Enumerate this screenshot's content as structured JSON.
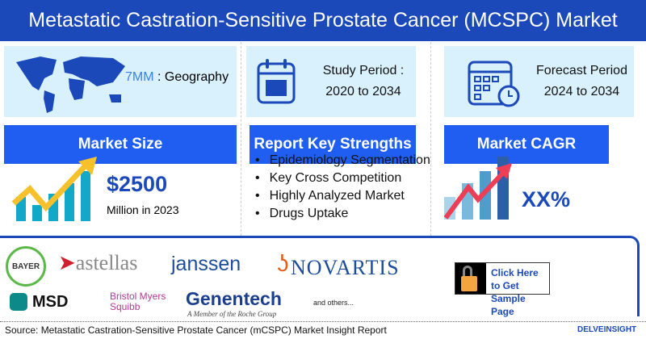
{
  "title": "Metastatic Castration-Sensitive Prostate Cancer (MCSPC) Market",
  "geography": {
    "highlight": "7MM",
    "label": " : Geography"
  },
  "study": {
    "line1": "Study Period :",
    "line2": "2020 to 2034"
  },
  "forecast": {
    "line1": "Forecast Period",
    "line2": "2024 to 2034"
  },
  "market_size": {
    "header": "Market Size",
    "value": "$2500",
    "sub": "Million in 2023"
  },
  "strengths": {
    "header": "Report Key Strengths",
    "items": [
      "Epidemiology Segmentation",
      "Key Cross Competition",
      "Highly Analyzed Market",
      "Drugs Uptake"
    ]
  },
  "cagr": {
    "header": "Market CAGR",
    "value": "XX%"
  },
  "logos": {
    "bayer": "BAYER",
    "astellas": "astellas",
    "janssen": "janssen",
    "novartis": "NOVARTIS",
    "msd": "MSD",
    "bms1": "Bristol Myers",
    "bms2": "Squibb",
    "genentech": "Genentech",
    "genentech_sub": "A Member of the Roche Group",
    "others": "and others..."
  },
  "cta": {
    "label": "Click Here to Get Sample Page"
  },
  "footer": {
    "source": "Source: Metastatic Castration-Sensitive Prostate Cancer (mCSPC) Market Insight Report",
    "brand": "DELVEINSIGHT"
  },
  "colors": {
    "title_bg": "#1c49b9",
    "header_bg": "#1f5ef0",
    "panel_bg": "#d9f1fc",
    "accent": "#1c49b9"
  }
}
